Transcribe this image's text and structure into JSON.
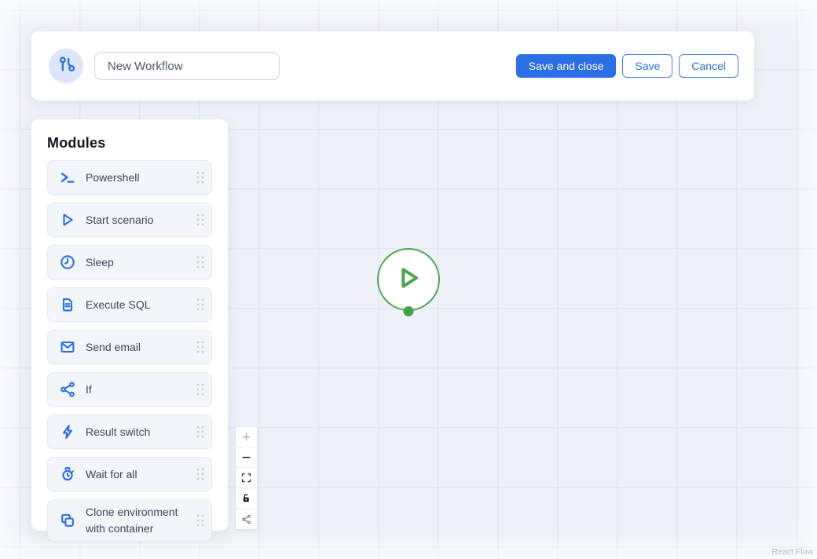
{
  "workflow": {
    "name_value": "New Workflow"
  },
  "header": {
    "buttons": {
      "save_and_close": "Save and close",
      "save": "Save",
      "cancel": "Cancel"
    }
  },
  "modules_panel": {
    "title": "Modules",
    "items": [
      {
        "icon": "terminal-icon",
        "label": "Powershell"
      },
      {
        "icon": "play-outline-icon",
        "label": "Start scenario"
      },
      {
        "icon": "clock-icon",
        "label": "Sleep"
      },
      {
        "icon": "document-icon",
        "label": "Execute SQL"
      },
      {
        "icon": "mail-icon",
        "label": "Send email"
      },
      {
        "icon": "share-branch-icon",
        "label": "If"
      },
      {
        "icon": "bolt-icon",
        "label": "Result switch"
      },
      {
        "icon": "watch-icon",
        "label": "Wait for all"
      },
      {
        "icon": "clone-icon",
        "label": "Clone environment with container"
      }
    ]
  },
  "canvas": {
    "node": {
      "type": "start",
      "icon": "play-icon"
    },
    "controls": [
      {
        "name": "zoom-in-button",
        "icon": "plus-icon"
      },
      {
        "name": "zoom-out-button",
        "icon": "minus-icon"
      },
      {
        "name": "fit-view-button",
        "icon": "fit-view-icon"
      },
      {
        "name": "lock-button",
        "icon": "lock-open-icon"
      },
      {
        "name": "share-button",
        "icon": "share-icon"
      }
    ],
    "attribution": "React Flow"
  },
  "colors": {
    "primary_blue": "#2b6fe4",
    "icon_blue": "#2b6fe4",
    "node_green": "#49a64f",
    "canvas_bg": "#eef2f8",
    "grid_line": "#e3e7f1"
  }
}
